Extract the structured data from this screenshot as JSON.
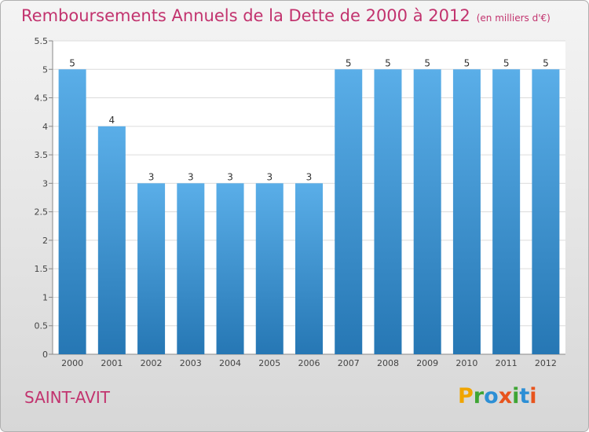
{
  "header": {
    "title": "Remboursements Annuels de la Dette de 2000 à 2012",
    "unit": "(en milliers d'€)"
  },
  "footer": {
    "commune": "SAINT-AVIT",
    "logo": "Proxiti"
  },
  "colors": {
    "title": "#c2336e",
    "bar_top": "#5aaee8",
    "bar_bottom": "#2677b4"
  },
  "chart_data": {
    "type": "bar",
    "title": "Remboursements Annuels de la Dette de 2000 à 2012",
    "xlabel": "",
    "ylabel": "",
    "categories": [
      "2000",
      "2001",
      "2002",
      "2003",
      "2004",
      "2005",
      "2006",
      "2007",
      "2008",
      "2009",
      "2010",
      "2011",
      "2012"
    ],
    "values": [
      5,
      4,
      3,
      3,
      3,
      3,
      3,
      5,
      5,
      5,
      5,
      5,
      5
    ],
    "data_labels": [
      "5",
      "4",
      "3",
      "3",
      "3",
      "3",
      "3",
      "5",
      "5",
      "5",
      "5",
      "5",
      "5"
    ],
    "ylim": [
      0,
      5.5
    ],
    "yticks": [
      0,
      0.5,
      1,
      1.5,
      2,
      2.5,
      3,
      3.5,
      4,
      4.5,
      5,
      5.5
    ],
    "ytick_labels": [
      "0",
      "0.5",
      "1",
      "1.5",
      "2",
      "2.5",
      "3",
      "3.5",
      "4",
      "4.5",
      "5",
      "5.5"
    ],
    "grid": true,
    "legend": "none"
  }
}
